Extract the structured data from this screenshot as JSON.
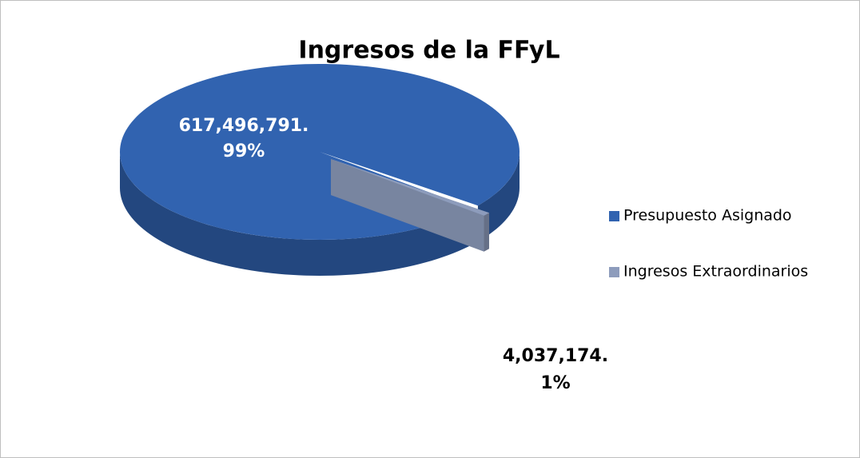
{
  "chart_data": {
    "type": "pie3d",
    "title": "Ingresos de la FFyL",
    "categories": [
      "Presupuesto Asignado",
      "Ingresos Extraordinarios"
    ],
    "values": [
      617496791,
      4037174
    ],
    "value_labels": [
      "617,496,791.",
      "4,037,174."
    ],
    "percents": [
      99,
      1
    ],
    "percent_labels": [
      "99%",
      "1%"
    ],
    "colors": [
      "#3163b0",
      "#8d9cbc"
    ],
    "legend": "right"
  }
}
